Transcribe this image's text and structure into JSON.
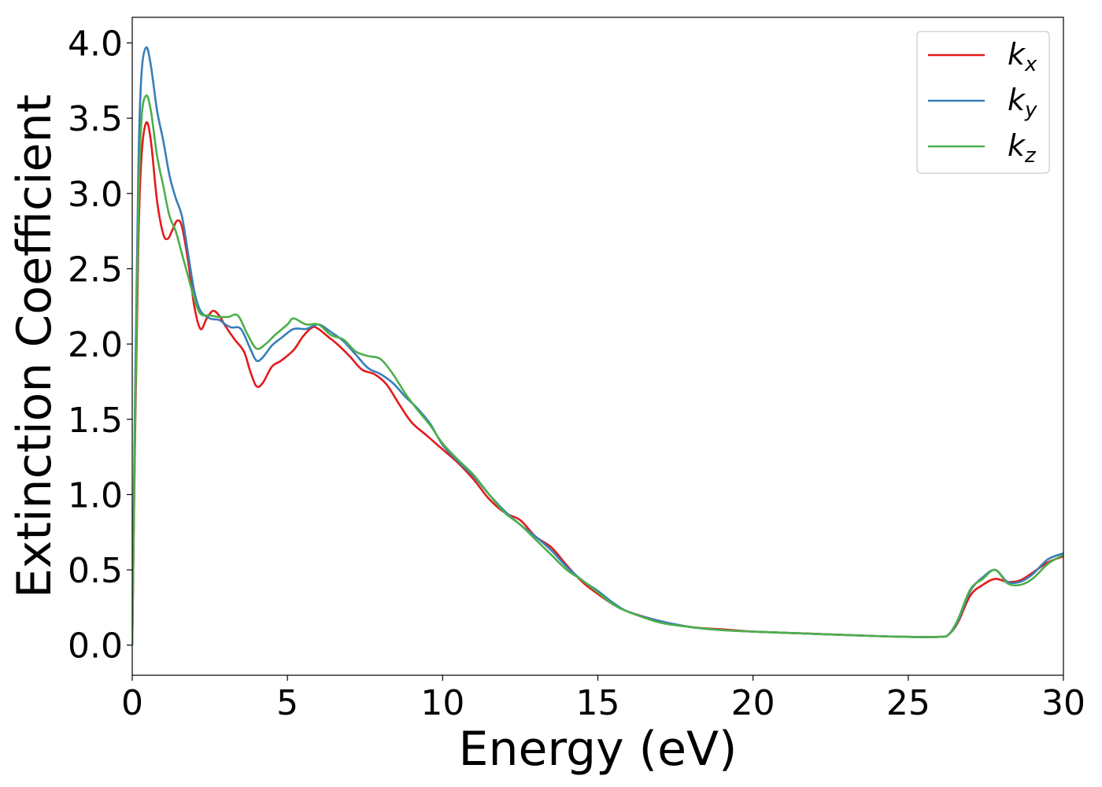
{
  "chart_data": {
    "type": "line",
    "xlabel": "Energy (eV)",
    "ylabel": "Extinction Coefficient",
    "xlim": [
      0,
      30
    ],
    "ylim": [
      -0.2,
      4.17
    ],
    "xticks": [
      0,
      5,
      10,
      15,
      20,
      25,
      30
    ],
    "xtick_labels": [
      "0",
      "5",
      "10",
      "15",
      "20",
      "25",
      "30"
    ],
    "yticks": [
      0.0,
      0.5,
      1.0,
      1.5,
      2.0,
      2.5,
      3.0,
      3.5,
      4.0
    ],
    "ytick_labels": [
      "0.0",
      "0.5",
      "1.0",
      "1.5",
      "2.0",
      "2.5",
      "3.0",
      "3.5",
      "4.0"
    ],
    "grid": false,
    "legend_position": "top-right",
    "series": [
      {
        "name": "k_x",
        "legend_base": "k",
        "legend_sub": "x",
        "color": "#e41a1c",
        "points": [
          [
            0,
            0.0
          ],
          [
            0.1,
            1.5
          ],
          [
            0.2,
            2.7
          ],
          [
            0.3,
            3.25
          ],
          [
            0.45,
            3.47
          ],
          [
            0.6,
            3.35
          ],
          [
            0.8,
            2.95
          ],
          [
            1.0,
            2.73
          ],
          [
            1.15,
            2.7
          ],
          [
            1.3,
            2.76
          ],
          [
            1.45,
            2.82
          ],
          [
            1.6,
            2.78
          ],
          [
            1.8,
            2.55
          ],
          [
            2.0,
            2.25
          ],
          [
            2.2,
            2.1
          ],
          [
            2.4,
            2.17
          ],
          [
            2.6,
            2.22
          ],
          [
            2.8,
            2.19
          ],
          [
            3.0,
            2.12
          ],
          [
            3.3,
            2.03
          ],
          [
            3.6,
            1.95
          ],
          [
            3.8,
            1.82
          ],
          [
            4.0,
            1.72
          ],
          [
            4.2,
            1.74
          ],
          [
            4.5,
            1.85
          ],
          [
            4.8,
            1.89
          ],
          [
            5.2,
            1.96
          ],
          [
            5.5,
            2.05
          ],
          [
            5.8,
            2.11
          ],
          [
            6.0,
            2.1
          ],
          [
            6.3,
            2.05
          ],
          [
            6.6,
            2.0
          ],
          [
            7.0,
            1.92
          ],
          [
            7.4,
            1.83
          ],
          [
            7.8,
            1.8
          ],
          [
            8.2,
            1.73
          ],
          [
            8.6,
            1.6
          ],
          [
            9.0,
            1.48
          ],
          [
            9.5,
            1.39
          ],
          [
            10.0,
            1.3
          ],
          [
            10.5,
            1.21
          ],
          [
            11.0,
            1.1
          ],
          [
            11.5,
            0.97
          ],
          [
            12.0,
            0.88
          ],
          [
            12.5,
            0.83
          ],
          [
            13.0,
            0.72
          ],
          [
            13.5,
            0.65
          ],
          [
            14.0,
            0.53
          ],
          [
            14.5,
            0.42
          ],
          [
            15.0,
            0.34
          ],
          [
            15.5,
            0.27
          ],
          [
            16.0,
            0.22
          ],
          [
            17.0,
            0.16
          ],
          [
            18.0,
            0.12
          ],
          [
            19.0,
            0.105
          ],
          [
            20.0,
            0.09
          ],
          [
            22.0,
            0.075
          ],
          [
            24.0,
            0.06
          ],
          [
            25.0,
            0.055
          ],
          [
            26.0,
            0.055
          ],
          [
            26.3,
            0.07
          ],
          [
            26.6,
            0.15
          ],
          [
            27.0,
            0.33
          ],
          [
            27.4,
            0.4
          ],
          [
            27.8,
            0.44
          ],
          [
            28.2,
            0.42
          ],
          [
            28.6,
            0.43
          ],
          [
            29.0,
            0.48
          ],
          [
            29.5,
            0.55
          ],
          [
            30.0,
            0.59
          ]
        ]
      },
      {
        "name": "k_y",
        "legend_base": "k",
        "legend_sub": "y",
        "color": "#377eb8",
        "points": [
          [
            0,
            0.0
          ],
          [
            0.1,
            1.8
          ],
          [
            0.2,
            3.2
          ],
          [
            0.3,
            3.8
          ],
          [
            0.45,
            3.97
          ],
          [
            0.6,
            3.85
          ],
          [
            0.8,
            3.55
          ],
          [
            1.0,
            3.35
          ],
          [
            1.2,
            3.12
          ],
          [
            1.4,
            2.97
          ],
          [
            1.6,
            2.85
          ],
          [
            1.8,
            2.6
          ],
          [
            2.0,
            2.35
          ],
          [
            2.2,
            2.22
          ],
          [
            2.5,
            2.17
          ],
          [
            2.8,
            2.16
          ],
          [
            3.0,
            2.13
          ],
          [
            3.2,
            2.11
          ],
          [
            3.5,
            2.1
          ],
          [
            3.8,
            1.97
          ],
          [
            4.0,
            1.89
          ],
          [
            4.2,
            1.91
          ],
          [
            4.5,
            1.99
          ],
          [
            4.8,
            2.04
          ],
          [
            5.2,
            2.1
          ],
          [
            5.6,
            2.1
          ],
          [
            6.0,
            2.13
          ],
          [
            6.4,
            2.08
          ],
          [
            6.8,
            2.02
          ],
          [
            7.2,
            1.93
          ],
          [
            7.6,
            1.84
          ],
          [
            8.0,
            1.8
          ],
          [
            8.4,
            1.74
          ],
          [
            8.8,
            1.65
          ],
          [
            9.2,
            1.57
          ],
          [
            9.6,
            1.47
          ],
          [
            10.0,
            1.33
          ],
          [
            10.5,
            1.22
          ],
          [
            11.0,
            1.12
          ],
          [
            11.5,
            1.0
          ],
          [
            12.0,
            0.89
          ],
          [
            12.5,
            0.8
          ],
          [
            13.0,
            0.72
          ],
          [
            13.5,
            0.63
          ],
          [
            14.0,
            0.52
          ],
          [
            14.5,
            0.43
          ],
          [
            15.0,
            0.36
          ],
          [
            15.5,
            0.28
          ],
          [
            16.0,
            0.22
          ],
          [
            17.0,
            0.16
          ],
          [
            18.0,
            0.12
          ],
          [
            19.0,
            0.1
          ],
          [
            20.0,
            0.09
          ],
          [
            22.0,
            0.075
          ],
          [
            24.0,
            0.06
          ],
          [
            25.0,
            0.055
          ],
          [
            26.0,
            0.055
          ],
          [
            26.3,
            0.07
          ],
          [
            26.6,
            0.16
          ],
          [
            27.0,
            0.36
          ],
          [
            27.4,
            0.45
          ],
          [
            27.8,
            0.5
          ],
          [
            28.2,
            0.42
          ],
          [
            28.6,
            0.42
          ],
          [
            29.0,
            0.47
          ],
          [
            29.5,
            0.57
          ],
          [
            30.0,
            0.61
          ]
        ]
      },
      {
        "name": "k_z",
        "legend_base": "k",
        "legend_sub": "z",
        "color": "#4daf4a",
        "points": [
          [
            0,
            0.0
          ],
          [
            0.1,
            1.6
          ],
          [
            0.2,
            2.9
          ],
          [
            0.3,
            3.5
          ],
          [
            0.45,
            3.65
          ],
          [
            0.6,
            3.55
          ],
          [
            0.8,
            3.25
          ],
          [
            1.0,
            3.05
          ],
          [
            1.2,
            2.85
          ],
          [
            1.4,
            2.75
          ],
          [
            1.6,
            2.6
          ],
          [
            1.8,
            2.45
          ],
          [
            2.0,
            2.3
          ],
          [
            2.2,
            2.2
          ],
          [
            2.5,
            2.19
          ],
          [
            2.8,
            2.18
          ],
          [
            3.1,
            2.18
          ],
          [
            3.4,
            2.19
          ],
          [
            3.7,
            2.07
          ],
          [
            4.0,
            1.97
          ],
          [
            4.3,
            2.0
          ],
          [
            4.6,
            2.06
          ],
          [
            5.0,
            2.13
          ],
          [
            5.2,
            2.17
          ],
          [
            5.6,
            2.13
          ],
          [
            6.0,
            2.13
          ],
          [
            6.4,
            2.06
          ],
          [
            6.8,
            2.03
          ],
          [
            7.2,
            1.95
          ],
          [
            7.6,
            1.92
          ],
          [
            8.0,
            1.9
          ],
          [
            8.4,
            1.8
          ],
          [
            8.8,
            1.67
          ],
          [
            9.2,
            1.56
          ],
          [
            9.6,
            1.46
          ],
          [
            10.0,
            1.34
          ],
          [
            10.5,
            1.23
          ],
          [
            11.0,
            1.13
          ],
          [
            11.5,
            1.0
          ],
          [
            12.0,
            0.88
          ],
          [
            12.5,
            0.8
          ],
          [
            13.0,
            0.7
          ],
          [
            13.5,
            0.6
          ],
          [
            14.0,
            0.5
          ],
          [
            14.5,
            0.43
          ],
          [
            15.0,
            0.35
          ],
          [
            15.5,
            0.27
          ],
          [
            16.0,
            0.22
          ],
          [
            17.0,
            0.15
          ],
          [
            18.0,
            0.12
          ],
          [
            19.0,
            0.1
          ],
          [
            20.0,
            0.09
          ],
          [
            22.0,
            0.075
          ],
          [
            24.0,
            0.06
          ],
          [
            25.0,
            0.055
          ],
          [
            26.0,
            0.055
          ],
          [
            26.3,
            0.07
          ],
          [
            26.6,
            0.17
          ],
          [
            27.0,
            0.37
          ],
          [
            27.4,
            0.44
          ],
          [
            27.8,
            0.5
          ],
          [
            28.2,
            0.41
          ],
          [
            28.6,
            0.4
          ],
          [
            29.0,
            0.44
          ],
          [
            29.5,
            0.54
          ],
          [
            30.0,
            0.6
          ]
        ]
      }
    ]
  }
}
